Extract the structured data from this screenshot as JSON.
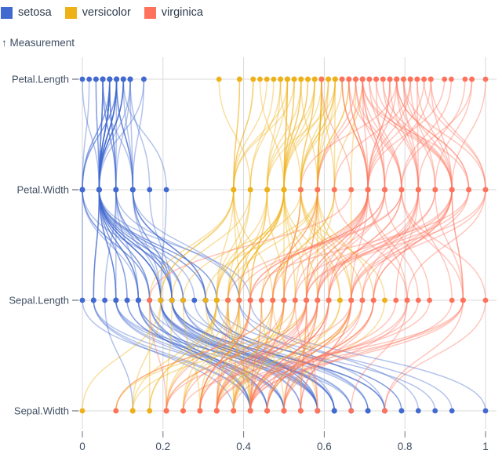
{
  "legend": {
    "items": [
      {
        "label": "setosa",
        "color": "#4269d0"
      },
      {
        "label": "versicolor",
        "color": "#efb118"
      },
      {
        "label": "virginica",
        "color": "#ff725c"
      }
    ],
    "position": "top-left"
  },
  "y_axis_note": {
    "label": "↑ Measurement"
  },
  "colors": {
    "grid": "#d9d9d9",
    "axis_tick": "#6b7280",
    "text": "#3f4e63",
    "background": "#ffffff"
  },
  "chart_data": {
    "type": "line",
    "variant": "parallel-coordinates",
    "title": "",
    "xlabel": "",
    "ylabel": "Measurement",
    "x_range": [
      0,
      1
    ],
    "x_ticks": [
      "0",
      "0.2",
      "0.4",
      "0.6",
      "0.8",
      "1"
    ],
    "grid": true,
    "normalization": "each measurement min-max normalized to [0,1] across all samples",
    "axes_top_to_bottom": [
      "Petal.Length",
      "Petal.Width",
      "Sepal.Length",
      "Sepal.Width"
    ],
    "row_order_in_samples": [
      "Sepal.Length",
      "Sepal.Width",
      "Petal.Length",
      "Petal.Width"
    ],
    "series": [
      {
        "name": "setosa",
        "color": "#4269d0",
        "samples": [
          [
            5.1,
            3.5,
            1.4,
            0.2
          ],
          [
            4.9,
            3.0,
            1.4,
            0.2
          ],
          [
            4.7,
            3.2,
            1.3,
            0.2
          ],
          [
            4.6,
            3.1,
            1.5,
            0.2
          ],
          [
            5.0,
            3.6,
            1.4,
            0.2
          ],
          [
            5.4,
            3.9,
            1.7,
            0.4
          ],
          [
            4.6,
            3.4,
            1.4,
            0.3
          ],
          [
            5.0,
            3.4,
            1.5,
            0.2
          ],
          [
            4.4,
            2.9,
            1.4,
            0.2
          ],
          [
            4.9,
            3.1,
            1.5,
            0.1
          ],
          [
            5.4,
            3.7,
            1.5,
            0.2
          ],
          [
            4.8,
            3.4,
            1.6,
            0.2
          ],
          [
            4.8,
            3.0,
            1.4,
            0.1
          ],
          [
            4.3,
            3.0,
            1.1,
            0.1
          ],
          [
            5.8,
            4.0,
            1.2,
            0.2
          ],
          [
            5.7,
            4.4,
            1.5,
            0.4
          ],
          [
            5.4,
            3.9,
            1.3,
            0.4
          ],
          [
            5.1,
            3.5,
            1.4,
            0.3
          ],
          [
            5.7,
            3.8,
            1.7,
            0.3
          ],
          [
            5.1,
            3.8,
            1.5,
            0.3
          ],
          [
            5.4,
            3.4,
            1.7,
            0.2
          ],
          [
            5.1,
            3.7,
            1.5,
            0.4
          ],
          [
            4.6,
            3.6,
            1.0,
            0.2
          ],
          [
            5.1,
            3.3,
            1.7,
            0.5
          ],
          [
            4.8,
            3.4,
            1.9,
            0.2
          ],
          [
            5.0,
            3.0,
            1.6,
            0.2
          ],
          [
            5.0,
            3.4,
            1.6,
            0.4
          ],
          [
            5.2,
            3.5,
            1.5,
            0.2
          ],
          [
            5.2,
            3.4,
            1.4,
            0.2
          ],
          [
            4.7,
            3.2,
            1.6,
            0.2
          ],
          [
            4.8,
            3.1,
            1.6,
            0.2
          ],
          [
            5.4,
            3.4,
            1.5,
            0.4
          ],
          [
            5.2,
            4.1,
            1.5,
            0.1
          ],
          [
            5.5,
            4.2,
            1.4,
            0.2
          ],
          [
            4.9,
            3.1,
            1.5,
            0.2
          ],
          [
            5.0,
            3.2,
            1.2,
            0.2
          ],
          [
            5.5,
            3.5,
            1.3,
            0.2
          ],
          [
            4.9,
            3.6,
            1.4,
            0.1
          ],
          [
            4.4,
            3.0,
            1.3,
            0.2
          ],
          [
            5.1,
            3.4,
            1.5,
            0.2
          ],
          [
            5.0,
            3.5,
            1.3,
            0.3
          ],
          [
            4.5,
            2.3,
            1.3,
            0.3
          ],
          [
            4.4,
            3.2,
            1.3,
            0.2
          ],
          [
            5.0,
            3.5,
            1.6,
            0.6
          ],
          [
            5.1,
            3.8,
            1.9,
            0.4
          ],
          [
            4.8,
            3.0,
            1.4,
            0.3
          ],
          [
            5.1,
            3.8,
            1.6,
            0.2
          ],
          [
            4.6,
            3.2,
            1.4,
            0.2
          ],
          [
            5.3,
            3.7,
            1.5,
            0.2
          ],
          [
            5.0,
            3.3,
            1.4,
            0.2
          ]
        ]
      },
      {
        "name": "versicolor",
        "color": "#efb118",
        "samples": [
          [
            7.0,
            3.2,
            4.7,
            1.4
          ],
          [
            6.4,
            3.2,
            4.5,
            1.5
          ],
          [
            6.9,
            3.1,
            4.9,
            1.5
          ],
          [
            5.5,
            2.3,
            4.0,
            1.3
          ],
          [
            6.5,
            2.8,
            4.6,
            1.5
          ],
          [
            5.7,
            2.8,
            4.5,
            1.3
          ],
          [
            6.3,
            3.3,
            4.7,
            1.6
          ],
          [
            4.9,
            2.4,
            3.3,
            1.0
          ],
          [
            6.6,
            2.9,
            4.6,
            1.3
          ],
          [
            5.2,
            2.7,
            3.9,
            1.4
          ],
          [
            5.0,
            2.0,
            3.5,
            1.0
          ],
          [
            5.9,
            3.0,
            4.2,
            1.5
          ],
          [
            6.0,
            2.2,
            4.0,
            1.0
          ],
          [
            6.1,
            2.9,
            4.7,
            1.4
          ],
          [
            5.6,
            2.9,
            3.6,
            1.3
          ],
          [
            6.7,
            3.1,
            4.4,
            1.4
          ],
          [
            5.6,
            3.0,
            4.5,
            1.5
          ],
          [
            5.8,
            2.7,
            4.1,
            1.0
          ],
          [
            6.2,
            2.2,
            4.5,
            1.5
          ],
          [
            5.6,
            2.5,
            3.9,
            1.1
          ],
          [
            5.9,
            3.2,
            4.8,
            1.8
          ],
          [
            6.1,
            2.8,
            4.0,
            1.3
          ],
          [
            6.3,
            2.5,
            4.9,
            1.5
          ],
          [
            6.1,
            2.8,
            4.7,
            1.2
          ],
          [
            6.4,
            2.9,
            4.3,
            1.3
          ],
          [
            6.6,
            3.0,
            4.4,
            1.4
          ],
          [
            6.8,
            2.8,
            4.8,
            1.4
          ],
          [
            6.7,
            3.0,
            5.0,
            1.7
          ],
          [
            6.0,
            2.9,
            4.5,
            1.5
          ],
          [
            5.7,
            2.6,
            3.5,
            1.0
          ],
          [
            5.5,
            2.4,
            3.8,
            1.1
          ],
          [
            5.5,
            2.4,
            3.7,
            1.0
          ],
          [
            5.8,
            2.7,
            3.9,
            1.2
          ],
          [
            6.0,
            2.7,
            5.1,
            1.6
          ],
          [
            5.4,
            3.0,
            4.5,
            1.5
          ],
          [
            6.0,
            3.4,
            4.5,
            1.6
          ],
          [
            6.7,
            3.1,
            4.7,
            1.5
          ],
          [
            6.3,
            2.3,
            4.4,
            1.3
          ],
          [
            5.6,
            3.0,
            4.1,
            1.3
          ],
          [
            5.5,
            2.5,
            4.0,
            1.3
          ],
          [
            5.5,
            2.6,
            4.4,
            1.2
          ],
          [
            6.1,
            3.0,
            4.6,
            1.4
          ],
          [
            5.8,
            2.6,
            4.0,
            1.2
          ],
          [
            5.0,
            2.3,
            3.3,
            1.0
          ],
          [
            5.6,
            2.7,
            4.2,
            1.3
          ],
          [
            5.7,
            3.0,
            4.2,
            1.2
          ],
          [
            5.7,
            2.9,
            4.2,
            1.3
          ],
          [
            6.2,
            2.9,
            4.3,
            1.3
          ],
          [
            5.1,
            2.5,
            3.0,
            1.1
          ],
          [
            5.7,
            2.8,
            4.1,
            1.3
          ]
        ]
      },
      {
        "name": "virginica",
        "color": "#ff725c",
        "samples": [
          [
            6.3,
            3.3,
            6.0,
            2.5
          ],
          [
            5.8,
            2.7,
            5.1,
            1.9
          ],
          [
            7.1,
            3.0,
            5.9,
            2.1
          ],
          [
            6.3,
            2.9,
            5.6,
            1.8
          ],
          [
            6.5,
            3.0,
            5.8,
            2.2
          ],
          [
            7.6,
            3.0,
            6.6,
            2.1
          ],
          [
            4.9,
            2.5,
            4.5,
            1.7
          ],
          [
            7.3,
            2.9,
            6.3,
            1.8
          ],
          [
            6.7,
            2.5,
            5.8,
            1.8
          ],
          [
            7.2,
            3.6,
            6.1,
            2.5
          ],
          [
            6.5,
            3.2,
            5.1,
            2.0
          ],
          [
            6.4,
            2.7,
            5.3,
            1.9
          ],
          [
            6.8,
            3.0,
            5.5,
            2.1
          ],
          [
            5.7,
            2.5,
            5.0,
            2.0
          ],
          [
            5.8,
            2.8,
            5.1,
            2.4
          ],
          [
            6.4,
            3.2,
            5.3,
            2.3
          ],
          [
            6.5,
            3.0,
            5.5,
            1.8
          ],
          [
            7.7,
            3.8,
            6.7,
            2.2
          ],
          [
            7.7,
            2.6,
            6.9,
            2.3
          ],
          [
            6.0,
            2.2,
            5.0,
            1.5
          ],
          [
            6.9,
            3.2,
            5.7,
            2.3
          ],
          [
            5.6,
            2.8,
            4.9,
            2.0
          ],
          [
            7.7,
            2.8,
            6.7,
            2.0
          ],
          [
            6.3,
            2.7,
            4.9,
            1.8
          ],
          [
            6.7,
            3.3,
            5.7,
            2.1
          ],
          [
            7.2,
            3.2,
            6.0,
            1.8
          ],
          [
            6.2,
            2.8,
            4.8,
            1.8
          ],
          [
            6.1,
            3.0,
            4.9,
            1.8
          ],
          [
            6.4,
            2.8,
            5.6,
            2.1
          ],
          [
            7.2,
            3.0,
            5.8,
            1.6
          ],
          [
            7.4,
            2.8,
            6.1,
            1.9
          ],
          [
            7.9,
            3.8,
            6.4,
            2.0
          ],
          [
            6.4,
            2.8,
            5.6,
            2.2
          ],
          [
            6.3,
            2.8,
            5.1,
            1.5
          ],
          [
            6.1,
            2.6,
            5.6,
            1.4
          ],
          [
            7.7,
            3.0,
            6.1,
            2.3
          ],
          [
            6.3,
            3.4,
            5.6,
            2.4
          ],
          [
            6.4,
            3.1,
            5.5,
            1.8
          ],
          [
            6.0,
            3.0,
            4.8,
            1.8
          ],
          [
            6.9,
            3.1,
            5.4,
            2.1
          ],
          [
            6.7,
            3.1,
            5.6,
            2.4
          ],
          [
            6.9,
            3.1,
            5.1,
            2.3
          ],
          [
            5.8,
            2.7,
            5.1,
            1.9
          ],
          [
            6.8,
            3.2,
            5.9,
            2.3
          ],
          [
            6.7,
            3.3,
            5.7,
            2.5
          ],
          [
            6.7,
            3.0,
            5.2,
            2.3
          ],
          [
            6.3,
            2.5,
            5.0,
            1.9
          ],
          [
            6.5,
            3.0,
            5.2,
            2.0
          ],
          [
            6.2,
            3.4,
            5.4,
            2.3
          ],
          [
            5.9,
            3.0,
            5.1,
            1.8
          ]
        ]
      }
    ]
  }
}
